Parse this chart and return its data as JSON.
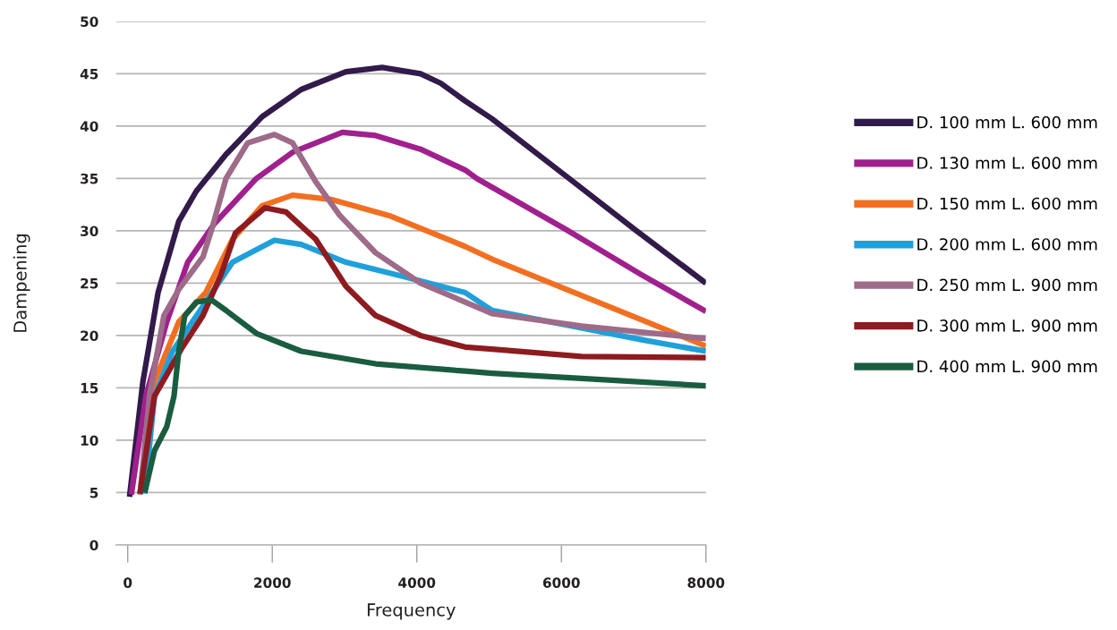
{
  "chart_data": {
    "type": "line",
    "xlabel": "Frequency",
    "ylabel": "Dampening",
    "xlim": [
      -160,
      8000
    ],
    "xticks": [
      0,
      2000,
      4000,
      6000,
      8000
    ],
    "ylim": [
      0,
      50
    ],
    "yticks": [
      0,
      5,
      10,
      15,
      20,
      25,
      30,
      35,
      40,
      45,
      50
    ],
    "grid": "y",
    "legend": "right",
    "marker": "none",
    "line_style": "solid",
    "series": [
      {
        "name": "D. 100 mm L. 600 mm",
        "color": "#321a4a",
        "x": [
          25,
          210,
          420,
          706,
          950,
          1360,
          1860,
          2400,
          3020,
          3520,
          4050,
          4330,
          4670,
          5040,
          6070,
          7020,
          8000
        ],
        "values": [
          4.6,
          15.6,
          24.1,
          30.9,
          33.8,
          37.3,
          40.9,
          43.5,
          45.2,
          45.6,
          45.0,
          44.1,
          42.4,
          40.7,
          35.2,
          30.1,
          25.0
        ]
      },
      {
        "name": "D. 130 mm L. 600 mm",
        "color": "#a0208e",
        "x": [
          50,
          250,
          540,
          830,
          1200,
          1780,
          2280,
          2970,
          3430,
          4050,
          4670,
          4830,
          6070,
          7110,
          8000
        ],
        "values": [
          4.8,
          14.2,
          21.3,
          27.0,
          30.7,
          35.0,
          37.5,
          39.4,
          39.1,
          37.8,
          35.8,
          35.0,
          30.1,
          25.8,
          22.3
        ]
      },
      {
        "name": "D. 150 mm L. 600 mm",
        "color": "#f26f21",
        "x": [
          170,
          370,
          706,
          1080,
          1450,
          1860,
          2280,
          2810,
          3640,
          4670,
          5040,
          6070,
          7110,
          8000
        ],
        "values": [
          4.9,
          15.6,
          21.3,
          24.1,
          29.2,
          32.4,
          33.4,
          33.0,
          31.4,
          28.5,
          27.3,
          24.4,
          21.5,
          19.0
        ]
      },
      {
        "name": "D. 200 mm L. 600 mm",
        "color": "#1fa0db",
        "x": [
          235,
          370,
          620,
          1080,
          1450,
          2030,
          2400,
          3020,
          3840,
          4670,
          5040,
          6070,
          7110,
          8000
        ],
        "values": [
          4.9,
          14.2,
          18.5,
          23.2,
          27.0,
          29.1,
          28.7,
          27.0,
          25.6,
          24.1,
          22.4,
          21.0,
          19.6,
          18.5
        ]
      },
      {
        "name": "D. 250 mm L. 900 mm",
        "color": "#9e6b88",
        "x": [
          170,
          300,
          500,
          706,
          1040,
          1160,
          1360,
          1660,
          2030,
          2280,
          2600,
          2930,
          3430,
          4050,
          4670,
          5040,
          6280,
          8000
        ],
        "values": [
          4.8,
          14.2,
          21.9,
          24.4,
          27.5,
          30.1,
          35.0,
          38.4,
          39.2,
          38.4,
          34.7,
          31.5,
          27.9,
          25.0,
          23.2,
          22.1,
          20.9,
          19.7
        ]
      },
      {
        "name": "D. 300 mm L. 900 mm",
        "color": "#8e1b1f",
        "x": [
          170,
          370,
          740,
          1040,
          1290,
          1490,
          1900,
          2190,
          2600,
          3020,
          3430,
          4050,
          4670,
          5040,
          6280,
          8000
        ],
        "values": [
          4.9,
          14.2,
          18.7,
          21.9,
          25.8,
          29.8,
          32.2,
          31.8,
          29.2,
          24.7,
          21.9,
          20.0,
          18.9,
          18.7,
          18.0,
          17.9
        ]
      },
      {
        "name": "D. 400 mm L. 900 mm",
        "color": "#1a5c3f",
        "x": [
          235,
          370,
          540,
          640,
          706,
          790,
          950,
          1160,
          1360,
          1780,
          2400,
          3430,
          4670,
          5040,
          6280,
          8000
        ],
        "values": [
          5.0,
          9.0,
          11.3,
          14.2,
          18.5,
          21.9,
          23.2,
          23.4,
          22.4,
          20.2,
          18.5,
          17.3,
          16.6,
          16.4,
          15.9,
          15.2
        ]
      }
    ]
  }
}
